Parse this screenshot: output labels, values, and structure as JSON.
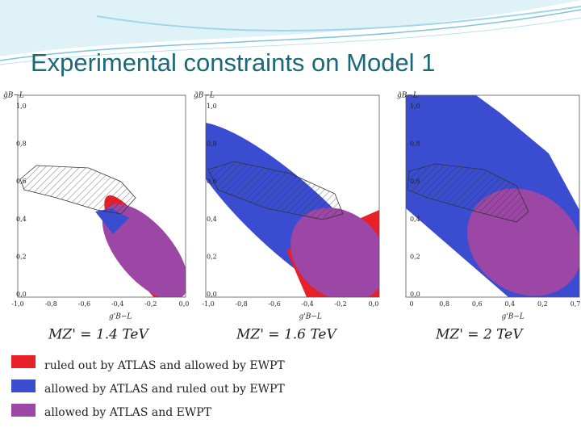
{
  "header": {
    "title": "Experimental constraints on Model 1"
  },
  "panels": [
    {
      "y_label": "g̃B−L",
      "x_label": "g'B−L",
      "caption": "MZ' = 1.4 TeV",
      "xticks": [
        "-1,0",
        "-0,8",
        "-0,6",
        "-0,4",
        "-0,2",
        "0,0"
      ],
      "yticks": [
        "1,0",
        "0,8",
        "0,6",
        "0,4",
        "0,2",
        "0,0"
      ]
    },
    {
      "y_label": "g̃B−L",
      "x_label": "g'B−L",
      "caption": "MZ' = 1.6 TeV",
      "xticks": [
        "-1,0",
        "-0,8",
        "-0,6",
        "-0,4",
        "-0,2",
        "0,0"
      ],
      "yticks": [
        "1,0",
        "0,8",
        "0,6",
        "0,4",
        "0,2",
        "0,0"
      ]
    },
    {
      "y_label": "g̃B−L",
      "x_label": "g'B−L",
      "caption": "MZ' = 2 TeV",
      "xticks": [
        "0",
        "0,8",
        "0,6",
        "0,4",
        "0,2",
        "0,7"
      ],
      "yticks": [
        "1,0",
        "0,8",
        "0,6",
        "0,4",
        "0,2",
        "0,0"
      ]
    }
  ],
  "legend": [
    {
      "label": "ruled out by ATLAS and allowed by EWPT"
    },
    {
      "label": "allowed by ATLAS and ruled out by EWPT"
    },
    {
      "label": "allowed by ATLAS and EWPT"
    }
  ]
}
